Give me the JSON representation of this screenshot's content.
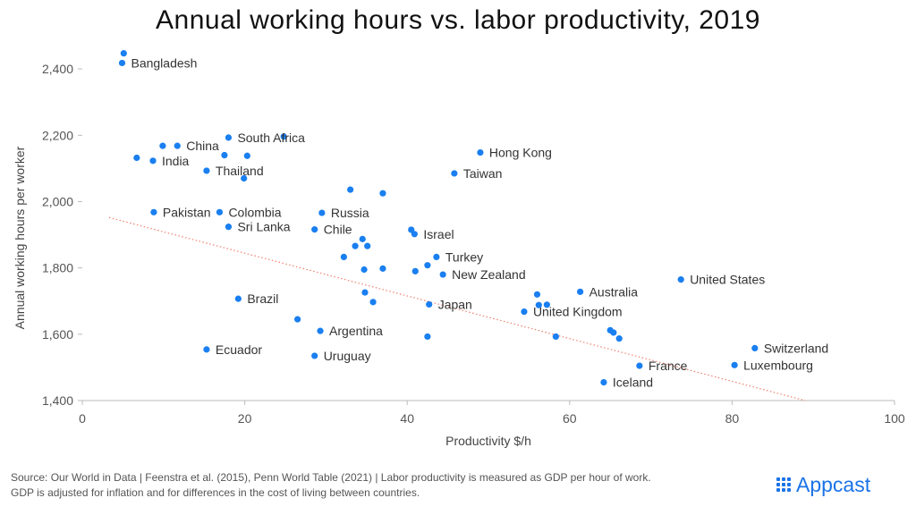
{
  "colors": {
    "point": "#1a7ff0",
    "trend": "#f08070",
    "brand": "#1a73e8"
  },
  "brand": {
    "name": "Appcast",
    "icon": "appcast-dot-grid-icon"
  },
  "source_note": [
    "Source: Our World in Data | Feenstra et al. (2015), Penn World Table (2021) | Labor productivity is measured as GDP per hour of work.",
    "GDP is adjusted for inflation and for differences in the cost of living between countries."
  ],
  "chart_data": {
    "type": "scatter",
    "title": "Annual working hours vs. labor productivity, 2019",
    "xlabel": "Productivity $/h",
    "ylabel": "Annual working hours per worker",
    "xlim": [
      0,
      100
    ],
    "ylim": [
      1400,
      2500
    ],
    "xticks": [
      0,
      20,
      40,
      60,
      80,
      100
    ],
    "yticks": [
      1400,
      1600,
      1800,
      2000,
      2200,
      2400
    ],
    "ytick_labels": [
      "1,400",
      "1,600",
      "1,800",
      "2,000",
      "2,200",
      "2,400"
    ],
    "grid": false,
    "trendline": {
      "style": "dotted",
      "from": [
        3.3,
        1952
      ],
      "to": [
        89,
        1400
      ]
    },
    "points": [
      {
        "x": 4.9,
        "y": 2418,
        "label": "Bangladesh"
      },
      {
        "x": 5.1,
        "y": 2447,
        "label": ""
      },
      {
        "x": 11.7,
        "y": 2168,
        "label": "China"
      },
      {
        "x": 9.9,
        "y": 2168,
        "label": ""
      },
      {
        "x": 18.0,
        "y": 2193,
        "label": "South Africa"
      },
      {
        "x": 24.8,
        "y": 2196,
        "label": ""
      },
      {
        "x": 8.7,
        "y": 2123,
        "label": "India"
      },
      {
        "x": 6.7,
        "y": 2132,
        "label": ""
      },
      {
        "x": 15.3,
        "y": 2093,
        "label": "Thailand"
      },
      {
        "x": 17.5,
        "y": 2140,
        "label": ""
      },
      {
        "x": 20.3,
        "y": 2138,
        "label": ""
      },
      {
        "x": 19.9,
        "y": 2070,
        "label": ""
      },
      {
        "x": 49.0,
        "y": 2148,
        "label": "Hong Kong"
      },
      {
        "x": 45.8,
        "y": 2085,
        "label": "Taiwan"
      },
      {
        "x": 33.0,
        "y": 2036,
        "label": ""
      },
      {
        "x": 37.0,
        "y": 2025,
        "label": ""
      },
      {
        "x": 8.8,
        "y": 1968,
        "label": "Pakistan"
      },
      {
        "x": 16.9,
        "y": 1968,
        "label": "Colombia"
      },
      {
        "x": 29.5,
        "y": 1966,
        "label": "Russia"
      },
      {
        "x": 18.0,
        "y": 1924,
        "label": "Sri Lanka"
      },
      {
        "x": 28.6,
        "y": 1916,
        "label": "Chile"
      },
      {
        "x": 40.5,
        "y": 1915,
        "label": ""
      },
      {
        "x": 40.9,
        "y": 1902,
        "label": "Israel"
      },
      {
        "x": 34.5,
        "y": 1887,
        "label": ""
      },
      {
        "x": 33.6,
        "y": 1866,
        "label": ""
      },
      {
        "x": 35.1,
        "y": 1866,
        "label": ""
      },
      {
        "x": 32.2,
        "y": 1833,
        "label": ""
      },
      {
        "x": 43.6,
        "y": 1833,
        "label": "Turkey"
      },
      {
        "x": 42.5,
        "y": 1808,
        "label": ""
      },
      {
        "x": 34.7,
        "y": 1795,
        "label": ""
      },
      {
        "x": 37.0,
        "y": 1798,
        "label": ""
      },
      {
        "x": 41.0,
        "y": 1790,
        "label": ""
      },
      {
        "x": 44.4,
        "y": 1780,
        "label": "New Zealand"
      },
      {
        "x": 73.7,
        "y": 1765,
        "label": "United States"
      },
      {
        "x": 61.3,
        "y": 1728,
        "label": "Australia"
      },
      {
        "x": 56.0,
        "y": 1720,
        "label": ""
      },
      {
        "x": 34.8,
        "y": 1726,
        "label": ""
      },
      {
        "x": 19.2,
        "y": 1707,
        "label": "Brazil"
      },
      {
        "x": 35.8,
        "y": 1697,
        "label": ""
      },
      {
        "x": 42.7,
        "y": 1690,
        "label": "Japan"
      },
      {
        "x": 56.2,
        "y": 1688,
        "label": ""
      },
      {
        "x": 57.2,
        "y": 1689,
        "label": ""
      },
      {
        "x": 54.4,
        "y": 1668,
        "label": "United Kingdom"
      },
      {
        "x": 26.5,
        "y": 1645,
        "label": ""
      },
      {
        "x": 29.3,
        "y": 1610,
        "label": "Argentina"
      },
      {
        "x": 65.0,
        "y": 1612,
        "label": ""
      },
      {
        "x": 65.4,
        "y": 1605,
        "label": ""
      },
      {
        "x": 42.5,
        "y": 1593,
        "label": ""
      },
      {
        "x": 58.3,
        "y": 1593,
        "label": ""
      },
      {
        "x": 66.1,
        "y": 1587,
        "label": ""
      },
      {
        "x": 15.3,
        "y": 1554,
        "label": "Ecuador"
      },
      {
        "x": 82.8,
        "y": 1558,
        "label": "Switzerland"
      },
      {
        "x": 28.6,
        "y": 1535,
        "label": "Uruguay"
      },
      {
        "x": 68.6,
        "y": 1505,
        "label": "France"
      },
      {
        "x": 80.3,
        "y": 1507,
        "label": "Luxembourg"
      },
      {
        "x": 64.2,
        "y": 1455,
        "label": "Iceland"
      }
    ]
  }
}
